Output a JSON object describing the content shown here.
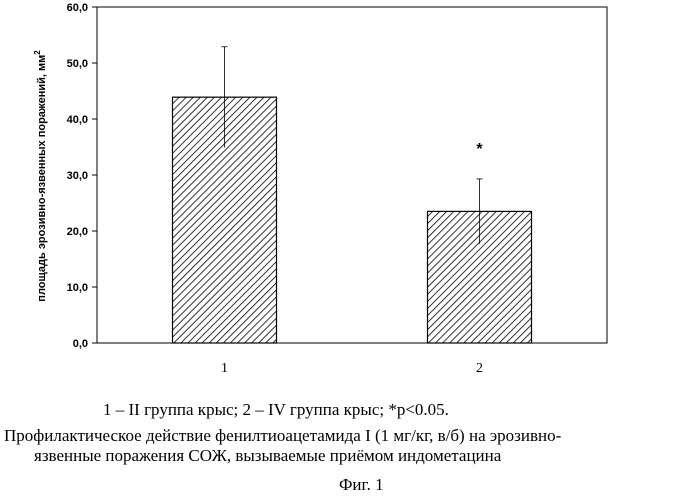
{
  "chart_data": {
    "type": "bar",
    "categories": [
      "1",
      "2"
    ],
    "values": [
      43.9,
      23.5
    ],
    "error_bars": [
      9.0,
      5.8
    ],
    "annotations": [
      "",
      "*"
    ],
    "ylabel": "площадь эрозивно-язвенных поражений, мм",
    "ylabel_superscript": "2",
    "ylim": [
      0,
      60
    ],
    "y_ticks": [
      "0,0",
      "10,0",
      "20,0",
      "30,0",
      "40,0",
      "50,0",
      "60,0"
    ],
    "y_tick_values": [
      0,
      10,
      20,
      30,
      40,
      50,
      60
    ],
    "bar_fill": "diagonal-hatch",
    "bar_color": "#000000",
    "grid": false
  },
  "caption": {
    "legend": "1 – II группа крыс; 2 – IV группа крыс; *p<0.05.",
    "description_line1": "Профилактическое действие фенилтиоацетамида I (1 мг/кг, в/б) на эрозивно-",
    "description_line2": "язвенные поражения СОЖ, вызываемые приёмом индометацина",
    "figure_label": "Фиг. 1"
  }
}
